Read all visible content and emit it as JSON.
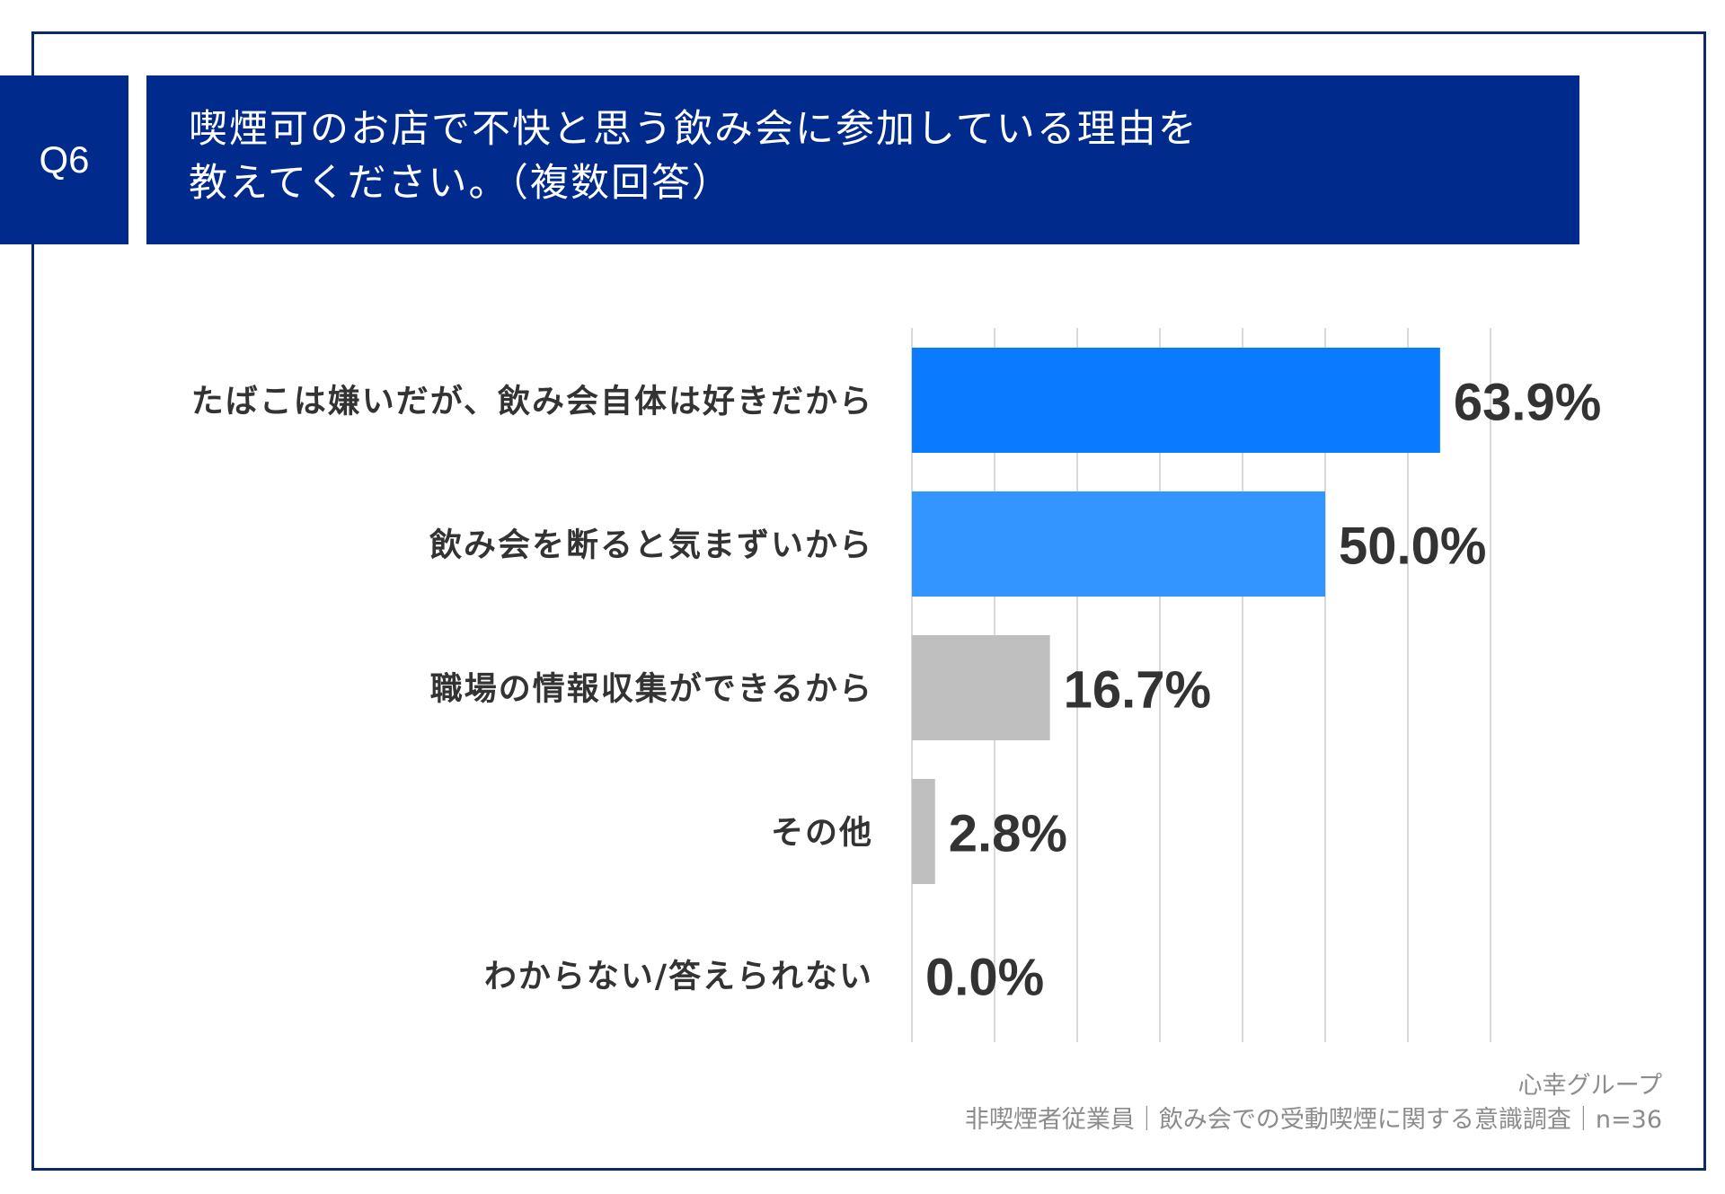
{
  "header": {
    "question_id": "Q6",
    "title_line1": "喫煙可のお店で不快と思う飲み会に参加している理由を",
    "title_line2": "教えてください。（複数回答）"
  },
  "colors": {
    "frame": "#0b2a6e",
    "header_bg": "#002b8c",
    "bar_primary": "#0a7bff",
    "bar_secondary": "#3395ff",
    "bar_other": "#bfbfbf",
    "grid": "#d9d9d9"
  },
  "chart_data": {
    "type": "bar",
    "orientation": "horizontal",
    "categories": [
      "たばこは嫌いだが、飲み会自体は好きだから",
      "飲み会を断ると気まずいから",
      "職場の情報収集ができるから",
      "その他",
      "わからない/答えられない"
    ],
    "values": [
      63.9,
      50.0,
      16.7,
      2.8,
      0.0
    ],
    "value_labels": [
      "63.9%",
      "50.0%",
      "16.7%",
      "2.8%",
      "0.0%"
    ],
    "bar_colors": [
      "#0a7bff",
      "#3395ff",
      "#bfbfbf",
      "#bfbfbf",
      "#bfbfbf"
    ],
    "xlim": [
      0,
      70
    ],
    "grid_step": 10,
    "grid": true,
    "unit": "%"
  },
  "footer": {
    "source": "心幸グループ",
    "survey": "非喫煙者従業員｜飲み会での受動喫煙に関する意識調査｜n=36"
  }
}
